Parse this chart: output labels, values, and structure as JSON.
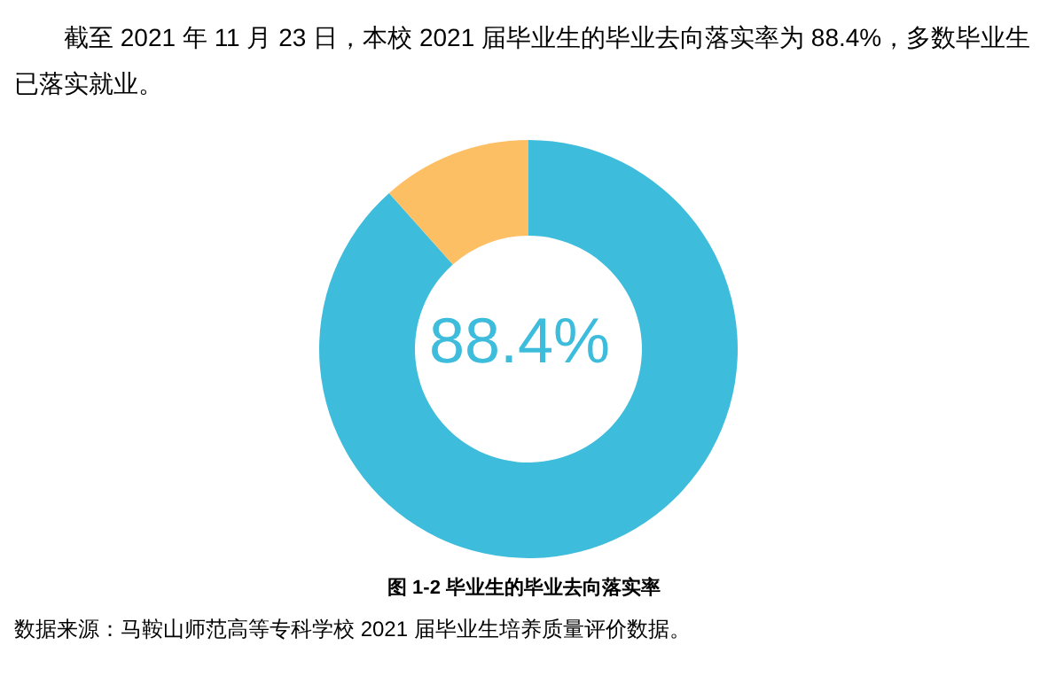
{
  "chart_data": {
    "type": "donut",
    "subtitle": "截至 2021 年 11 月 23 日，本校 2021 届毕业生的毕业去向落实率为 88.4%，多数毕业生已落实就业。",
    "title": "图 1-2  毕业生的毕业去向落实率",
    "categories": [
      null,
      null
    ],
    "values": [
      88.4,
      11.6
    ],
    "colors": [
      "#3dbcdc",
      "#fdbf63"
    ],
    "value_labels": [
      "88.4%",
      null
    ],
    "legend": false,
    "annotations": [
      "数据来源：马鞍山师范高等专科学校 2021 届毕业生培养质量评价数据。"
    ]
  }
}
